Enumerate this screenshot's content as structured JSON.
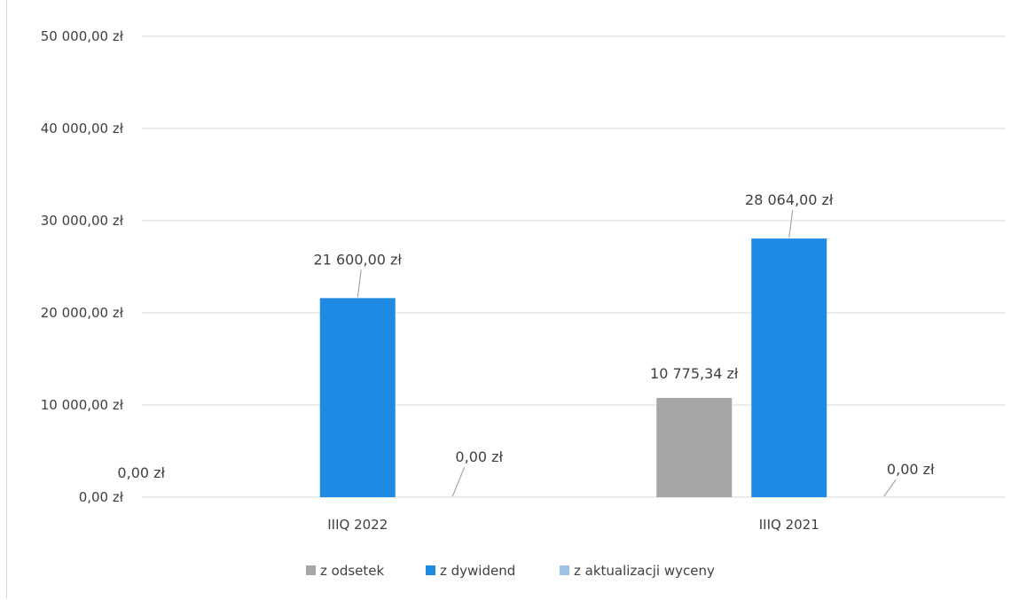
{
  "chart_data": {
    "type": "bar",
    "categories": [
      "IIIQ 2022",
      "IIIQ 2021"
    ],
    "series": [
      {
        "name": "z odsetek",
        "color": "#a6a6a6",
        "values": [
          0,
          10775.34
        ],
        "labels": [
          "0,00 zł",
          "10 775,34 zł"
        ]
      },
      {
        "name": "z dywidend",
        "color": "#1f8ae3",
        "values": [
          21600,
          28064
        ],
        "labels": [
          "21 600,00 zł",
          "28 064,00 zł"
        ]
      },
      {
        "name": "z aktualizacji wyceny",
        "color": "#9dc3e6",
        "values": [
          0,
          0
        ],
        "labels": [
          "0,00 zł",
          "0,00 zł"
        ]
      }
    ],
    "ylim": [
      0,
      50000
    ],
    "yticks": [
      0,
      10000,
      20000,
      30000,
      40000,
      50000
    ],
    "ytick_labels": [
      "0,00 zł",
      "10 000,00 zł",
      "20 000,00 zł",
      "30 000,00 zł",
      "40 000,00 zł",
      "50 000,00 zł"
    ],
    "grid": true,
    "legend_position": "bottom"
  }
}
